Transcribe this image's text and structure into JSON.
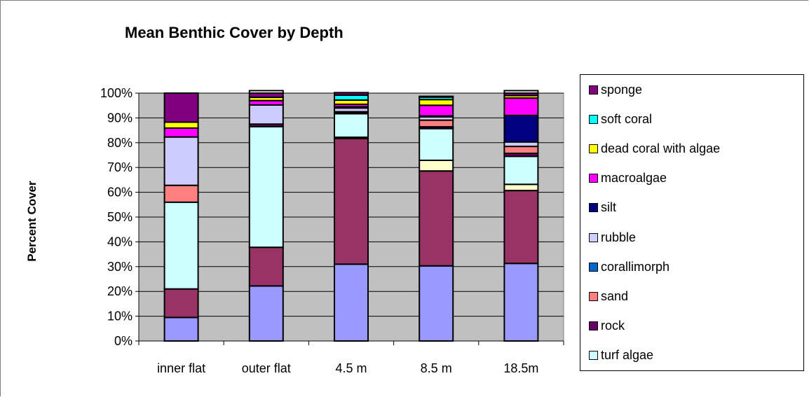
{
  "chart_data": {
    "type": "bar",
    "stacked": true,
    "title": "Mean Benthic Cover by Depth",
    "xlabel": "",
    "ylabel": "Percent Cover",
    "ylim": [
      0,
      100
    ],
    "y_ticks": [
      "0%",
      "10%",
      "20%",
      "30%",
      "40%",
      "50%",
      "60%",
      "70%",
      "80%",
      "90%",
      "100%"
    ],
    "categories": [
      "inner flat",
      "outer flat",
      "4.5 m",
      "8.5 m",
      "18.5m"
    ],
    "grid": "horizontal",
    "plot_background": "#c0c0c0",
    "legend_position": "right",
    "series": [
      {
        "name": "",
        "color": "#9999ff",
        "values": [
          9.5,
          22.2,
          31,
          30.3,
          31.3
        ]
      },
      {
        "name": "",
        "color": "#993366",
        "values": [
          11.5,
          15.6,
          50.7,
          38.3,
          29.4
        ]
      },
      {
        "name": "",
        "color": "#ffffcc",
        "values": [
          0,
          0,
          0.5,
          4.3,
          2.5
        ]
      },
      {
        "name": "turf algae",
        "color": "#ccffff",
        "values": [
          35,
          48.7,
          9.5,
          12.8,
          11.3
        ]
      },
      {
        "name": "rock",
        "color": "#660066",
        "values": [
          0,
          1,
          0.3,
          0.7,
          1.2
        ]
      },
      {
        "name": "sand",
        "color": "#ff8080",
        "values": [
          6.8,
          0,
          0,
          2.7,
          2.8
        ]
      },
      {
        "name": "corallimorph",
        "color": "#0066cc",
        "values": [
          0,
          0,
          0.5,
          0,
          0
        ]
      },
      {
        "name": "rubble",
        "color": "#ccccff",
        "values": [
          19.5,
          7.7,
          1.5,
          1.3,
          1.8
        ]
      },
      {
        "name": "silt",
        "color": "#000080",
        "values": [
          0,
          0,
          0.5,
          0.4,
          10.7
        ]
      },
      {
        "name": "macroalgae",
        "color": "#ff00ff",
        "values": [
          3.6,
          1.8,
          1,
          4.3,
          7
        ]
      },
      {
        "name": "dead coral with algae",
        "color": "#ffff00",
        "values": [
          2.4,
          1.3,
          1.7,
          2.3,
          1
        ]
      },
      {
        "name": "soft coral",
        "color": "#00ffff",
        "values": [
          0,
          0,
          2,
          1,
          0
        ]
      },
      {
        "name": "sponge",
        "color": "#800080",
        "values": [
          11.7,
          1.7,
          1,
          0.3,
          1
        ]
      },
      {
        "name": "",
        "color": "#ffffff",
        "values": [
          0,
          1,
          0,
          0,
          1
        ]
      }
    ]
  },
  "legend": {
    "items": [
      {
        "label": "sponge",
        "color": "#800080"
      },
      {
        "label": "soft coral",
        "color": "#00ffff"
      },
      {
        "label": "dead coral with algae",
        "color": "#ffff00"
      },
      {
        "label": "macroalgae",
        "color": "#ff00ff"
      },
      {
        "label": "silt",
        "color": "#000080"
      },
      {
        "label": "rubble",
        "color": "#ccccff"
      },
      {
        "label": "corallimorph",
        "color": "#0066cc"
      },
      {
        "label": "sand",
        "color": "#ff8080"
      },
      {
        "label": "rock",
        "color": "#660066"
      },
      {
        "label": "turf algae",
        "color": "#ccffff"
      }
    ]
  }
}
